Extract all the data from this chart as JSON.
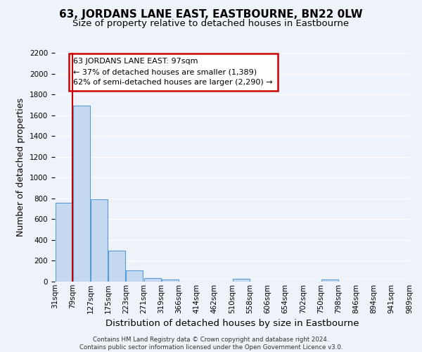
{
  "title": "63, JORDANS LANE EAST, EASTBOURNE, BN22 0LW",
  "subtitle": "Size of property relative to detached houses in Eastbourne",
  "xlabel": "Distribution of detached houses by size in Eastbourne",
  "ylabel": "Number of detached properties",
  "bins": [
    "31sqm",
    "79sqm",
    "127sqm",
    "175sqm",
    "223sqm",
    "271sqm",
    "319sqm",
    "366sqm",
    "414sqm",
    "462sqm",
    "510sqm",
    "558sqm",
    "606sqm",
    "654sqm",
    "702sqm",
    "750sqm",
    "798sqm",
    "846sqm",
    "894sqm",
    "941sqm",
    "989sqm"
  ],
  "bar_heights": [
    760,
    1690,
    790,
    295,
    110,
    35,
    22,
    0,
    0,
    0,
    30,
    0,
    0,
    0,
    0,
    20,
    0,
    0,
    0,
    0
  ],
  "bar_color": "#c5d9f0",
  "bar_edge_color": "#5b9bd5",
  "ylim": [
    0,
    2200
  ],
  "yticks": [
    0,
    200,
    400,
    600,
    800,
    1000,
    1200,
    1400,
    1600,
    1800,
    2000,
    2200
  ],
  "annotation_text": "63 JORDANS LANE EAST: 97sqm\n← 37% of detached houses are smaller (1,389)\n62% of semi-detached houses are larger (2,290) →",
  "annotation_box_color": "#ffffff",
  "annotation_box_edge": "#cc0000",
  "footer_text": "Contains HM Land Registry data © Crown copyright and database right 2024.\nContains public sector information licensed under the Open Government Licence v3.0.",
  "bg_color": "#eef2f9",
  "grid_color": "#ffffff",
  "title_fontsize": 11,
  "subtitle_fontsize": 9.5,
  "axis_label_fontsize": 9,
  "tick_fontsize": 7.5
}
